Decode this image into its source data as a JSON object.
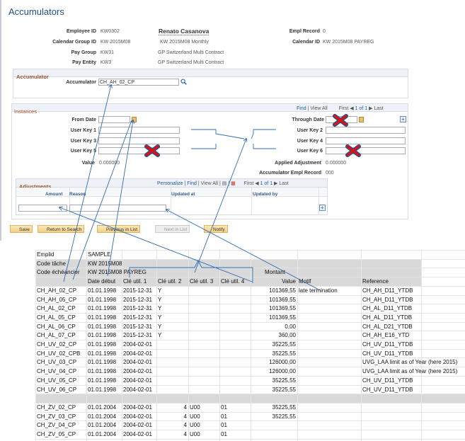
{
  "page_title": "Accumulators",
  "header": {
    "employee_id_label": "Employee ID",
    "employee_id": "KW0302",
    "employee_name": "Renato Casanova",
    "empl_record_label": "Empl Record",
    "empl_record": "0",
    "calendar_group_label": "Calendar Group ID",
    "calendar_group": "KW 2015M08",
    "calendar_group_desc": "KW 2015M08 Monthly",
    "calendar_id_label": "Calendar ID",
    "calendar_id": "KW 2015M08 PAYREG",
    "pay_group_label": "Pay Group",
    "pay_group": "KW31",
    "pay_group_desc": "GP Switzerland Multi Contract",
    "pay_entity_label": "Pay Entity",
    "pay_entity": "KW3",
    "pay_entity_desc": "GP Switzerland Multi Contract"
  },
  "accumulator": {
    "section": "Accumulator",
    "label": "Accumulator",
    "value": "CH_AH_02_CP"
  },
  "instances": {
    "section": "Instances",
    "find": "Find",
    "view_all": "View All",
    "first": "First",
    "count": "1 of 1",
    "last": "Last",
    "from_date": "From Date",
    "through_date": "Through Date",
    "user_key_1": "User Key 1",
    "user_key_2": "User Key 2",
    "user_key_3": "User Key 3",
    "user_key_4": "User Key 4",
    "user_key_5": "User Key 5",
    "user_key_6": "User Key 6",
    "value_label": "Value",
    "value": "0.000000",
    "applied_adj_label": "Applied Adjustment",
    "applied_adj": "0.000000",
    "acc_empl_rec_label": "Accumulator Empl Record",
    "acc_empl_rec": "000"
  },
  "adjustments": {
    "section": "Adjustments",
    "personalize": "Personalize",
    "find": "Find",
    "view_all": "View All",
    "first": "First",
    "count": "1 of 1",
    "last": "Last",
    "columns": [
      "Amount",
      "Reason",
      "Updated at",
      "Updated by"
    ]
  },
  "toolbar": {
    "save": "Save",
    "return": "Return to Search",
    "previous": "Previous in List",
    "next": "Next in List",
    "notify": "Notify"
  },
  "sheet": {
    "meta": [
      [
        "Emplid",
        "SAMPLE"
      ],
      [
        "Code tâche",
        "KW 2015M08"
      ],
      [
        "Code échéancier",
        "KW 2015M08 PAYREG"
      ]
    ],
    "montant": "Montant",
    "headers": [
      "",
      "Date début",
      "Clé util. 1",
      "Clé util. 2",
      "Clé util. 3",
      "Clé util. 4",
      "Value",
      "Motif",
      "Reference"
    ],
    "rows": [
      [
        "CH_AH_02_CP",
        "01.01.1998",
        "2015-12-31",
        "Y",
        "",
        "",
        "101369,55",
        "late termination",
        "CH_AH_D11_YTDB"
      ],
      [
        "CH_AH_05_CP",
        "01.01.1998",
        "2015-12-31",
        "Y",
        "",
        "",
        "101369,55",
        "",
        "CH_AH_D11_YTDB"
      ],
      [
        "CH_AL_02_CP",
        "01.01.1998",
        "2015-12-31",
        "Y",
        "",
        "",
        "101369,55",
        "",
        "CH_AL_D11_YTDB"
      ],
      [
        "CH_AL_05_CP",
        "01.01.1998",
        "2015-12-31",
        "Y",
        "",
        "",
        "101369,55",
        "",
        "CH_AL_D11_YTDB"
      ],
      [
        "CH_AL_06_CP",
        "01.01.1998",
        "2015-12-31",
        "Y",
        "",
        "",
        "0,00",
        "",
        "CH_AL_D21_YTDB"
      ],
      [
        "CH_AL_07_CP",
        "01.01.1998",
        "2015-12-31",
        "Y",
        "",
        "",
        "360,00",
        "",
        "CH_AH_E16_YTD"
      ],
      [
        "CH_UV_02_CP",
        "01.01.1998",
        "2004-02-01",
        "",
        "",
        "",
        "35225,55",
        "",
        "CH_UV_D11_YTDB"
      ],
      [
        "CH_UV_02_CPB",
        "01.01.1998",
        "2004-02-01",
        "",
        "",
        "",
        "35225,55",
        "",
        "CH_UV_D11_YTDB"
      ],
      [
        "CH_UV_03_CP",
        "01.01.1998",
        "2004-02-01",
        "",
        "",
        "",
        "126000,00",
        "",
        "UVG_LAA limit as of Year (here 2015)"
      ],
      [
        "CH_UV_04_CP",
        "01.01.1998",
        "2004-02-01",
        "",
        "",
        "",
        "126000,00",
        "",
        "UVG_LAA limit as of Year (here 2015)"
      ],
      [
        "CH_UV_05_CP",
        "01.01.1998",
        "2004-02-01",
        "",
        "",
        "",
        "35225,55",
        "",
        "CH_UV_D11_YTDB"
      ],
      [
        "CH_UV_06_CP",
        "01.01.1998",
        "2004-02-01",
        "",
        "",
        "",
        "35225,55",
        "",
        "CH_UV_D11_YTDB"
      ]
    ],
    "rows2": [
      [
        "CH_ZV_02_CP",
        "01.01.2004",
        "2004-02-01",
        "4",
        "U00",
        "01",
        "35225,55",
        "",
        ""
      ],
      [
        "CH_ZV_03_CP",
        "01.01.2004",
        "2004-02-01",
        "4",
        "U00",
        "01",
        "35225,55",
        "",
        ""
      ],
      [
        "CH_ZV_04_CP",
        "01.01.2004",
        "2004-02-01",
        "4",
        "U00",
        "01",
        "",
        "",
        ""
      ],
      [
        "CH_ZV_05_CP",
        "01.01.2004",
        "2004-02-01",
        "4",
        "U00",
        "01",
        "",
        "",
        ""
      ]
    ]
  },
  "colors": {
    "title": "#1a4f8c",
    "section": "#a0522d",
    "link": "#1e5aa8",
    "annotation": "#2e6bb5",
    "cross": "#e01010",
    "sheet_band": "#d9d9d9"
  }
}
